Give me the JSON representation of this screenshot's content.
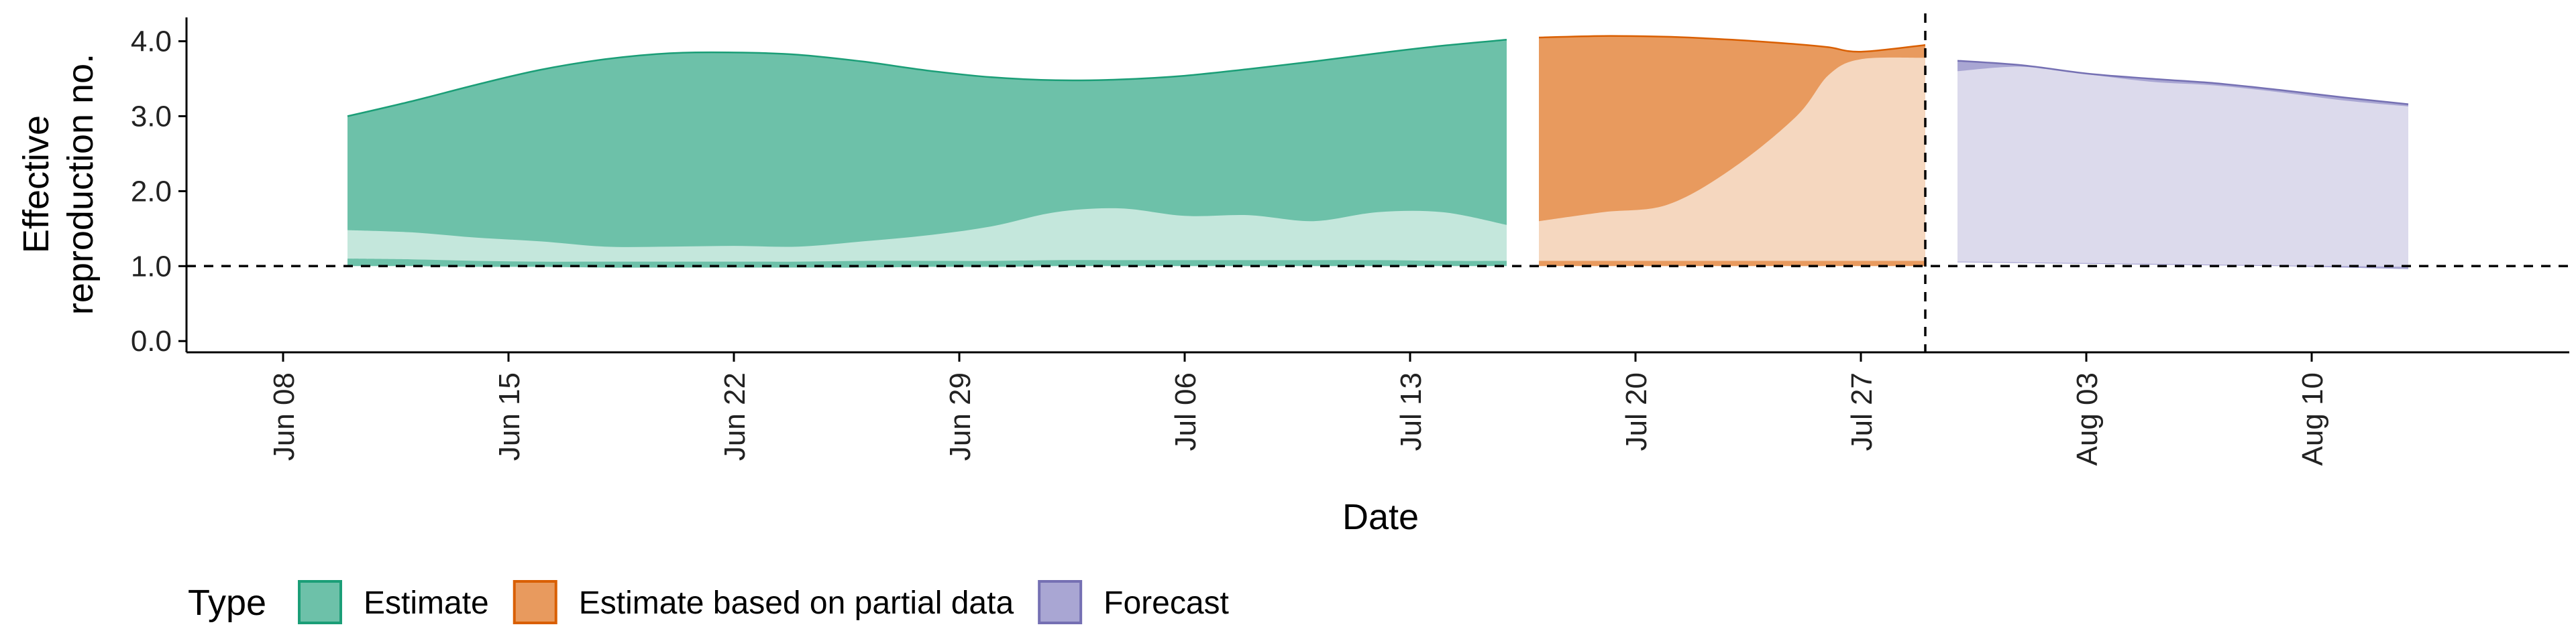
{
  "chart_data": {
    "type": "area",
    "xlabel": "Date",
    "ylabel_line1": "Effective",
    "ylabel_line2": "reproduction no.",
    "ylim": [
      -0.15,
      4.3
    ],
    "xlim": [
      "2020-06-05",
      "2020-08-18"
    ],
    "y_ticks": [
      {
        "value": 0.0,
        "label": "0.0"
      },
      {
        "value": 1.0,
        "label": "1.0"
      },
      {
        "value": 2.0,
        "label": "2.0"
      },
      {
        "value": 3.0,
        "label": "3.0"
      },
      {
        "value": 4.0,
        "label": "4.0"
      }
    ],
    "x_ticks": [
      {
        "date": "2020-06-08",
        "label": "Jun 08"
      },
      {
        "date": "2020-06-15",
        "label": "Jun 15"
      },
      {
        "date": "2020-06-22",
        "label": "Jun 22"
      },
      {
        "date": "2020-06-29",
        "label": "Jun 29"
      },
      {
        "date": "2020-07-06",
        "label": "Jul 06"
      },
      {
        "date": "2020-07-13",
        "label": "Jul 13"
      },
      {
        "date": "2020-07-20",
        "label": "Jul 20"
      },
      {
        "date": "2020-07-27",
        "label": "Jul 27"
      },
      {
        "date": "2020-08-03",
        "label": "Aug 03"
      },
      {
        "date": "2020-08-10",
        "label": "Aug 10"
      }
    ],
    "reference_lines": {
      "horizontal_y": 1.0,
      "vertical_date": "2020-07-29"
    },
    "legend": {
      "title": "Type",
      "position": "bottom-left",
      "items": [
        {
          "label": "Estimate",
          "fill": "#6dc1a9",
          "stroke": "#1b9e77"
        },
        {
          "label": "Estimate based on partial data",
          "fill": "#e89a5e",
          "stroke": "#d95f02"
        },
        {
          "label": "Forecast",
          "fill": "#a9a6d3",
          "stroke": "#7570b3"
        }
      ]
    },
    "series": [
      {
        "name": "Estimate",
        "outer_fill": "#6dc1a9",
        "inner_fill": "#c4e7dc",
        "stroke": "#1b9e77",
        "x": [
          "2020-06-10",
          "2020-06-12",
          "2020-06-14",
          "2020-06-16",
          "2020-06-18",
          "2020-06-20",
          "2020-06-22",
          "2020-06-24",
          "2020-06-26",
          "2020-06-28",
          "2020-06-30",
          "2020-07-02",
          "2020-07-04",
          "2020-07-06",
          "2020-07-08",
          "2020-07-10",
          "2020-07-12",
          "2020-07-14",
          "2020-07-16"
        ],
        "upper90": [
          3.0,
          3.2,
          3.42,
          3.62,
          3.76,
          3.84,
          3.85,
          3.82,
          3.73,
          3.61,
          3.52,
          3.48,
          3.49,
          3.54,
          3.63,
          3.73,
          3.84,
          3.94,
          4.02
        ],
        "upper50": [
          1.48,
          1.45,
          1.38,
          1.33,
          1.26,
          1.26,
          1.27,
          1.26,
          1.33,
          1.41,
          1.53,
          1.72,
          1.77,
          1.67,
          1.68,
          1.6,
          1.72,
          1.72,
          1.55
        ],
        "lower50": [
          1.1,
          1.09,
          1.07,
          1.06,
          1.06,
          1.06,
          1.06,
          1.06,
          1.07,
          1.07,
          1.07,
          1.08,
          1.08,
          1.08,
          1.08,
          1.08,
          1.08,
          1.07,
          1.07
        ],
        "lower90": [
          1.0,
          1.0,
          0.99,
          0.99,
          0.98,
          0.98,
          0.98,
          0.98,
          0.98,
          0.99,
          0.99,
          1.0,
          1.0,
          1.0,
          1.0,
          1.0,
          1.0,
          1.0,
          1.0
        ]
      },
      {
        "name": "Estimate based on partial data",
        "outer_fill": "#e89a5e",
        "inner_fill": "#f5d7bf",
        "stroke": "#d95f02",
        "x": [
          "2020-07-17",
          "2020-07-19",
          "2020-07-21",
          "2020-07-23",
          "2020-07-25",
          "2020-07-26",
          "2020-07-27",
          "2020-07-29"
        ],
        "upper90": [
          4.05,
          4.07,
          4.06,
          4.02,
          3.96,
          3.92,
          3.86,
          3.95
        ],
        "upper50": [
          1.6,
          1.72,
          1.82,
          2.3,
          3.0,
          3.55,
          3.76,
          3.78
        ],
        "lower50": [
          1.07,
          1.07,
          1.07,
          1.07,
          1.07,
          1.07,
          1.07,
          1.07
        ],
        "lower90": [
          1.0,
          1.0,
          1.0,
          1.0,
          1.0,
          1.0,
          1.0,
          1.0
        ]
      },
      {
        "name": "Forecast",
        "outer_fill": "#a9a6d3",
        "inner_fill": "#dcdaec",
        "stroke": "#7570b3",
        "x": [
          "2020-07-30",
          "2020-08-01",
          "2020-08-03",
          "2020-08-05",
          "2020-08-07",
          "2020-08-09",
          "2020-08-11",
          "2020-08-13"
        ],
        "upper90": [
          3.74,
          3.68,
          3.57,
          3.5,
          3.44,
          3.35,
          3.25,
          3.16
        ],
        "upper50": [
          3.6,
          3.66,
          3.56,
          3.46,
          3.41,
          3.32,
          3.21,
          3.13
        ],
        "lower50": [
          1.06,
          1.05,
          1.04,
          1.03,
          1.02,
          1.01,
          1.0,
          0.99
        ],
        "lower90": [
          1.05,
          1.04,
          1.03,
          1.02,
          1.01,
          1.0,
          0.98,
          0.96
        ]
      }
    ]
  }
}
